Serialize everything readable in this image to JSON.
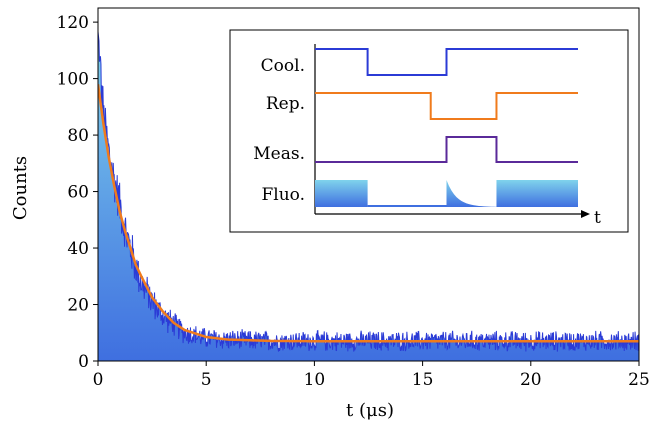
{
  "chart_data": {
    "type": "line",
    "xlabel": "t (μs)",
    "ylabel": "Counts",
    "xlim": [
      0,
      25
    ],
    "ylim": [
      0,
      125
    ],
    "xticks": [
      0,
      5,
      10,
      15,
      20,
      25
    ],
    "yticks": [
      0,
      20,
      40,
      60,
      80,
      100,
      120
    ],
    "grid": false,
    "series": [
      {
        "kind": "histogram",
        "color": "#2b3bd6",
        "fill_gradient": [
          "#7fd3ec",
          "#3f6fe0"
        ],
        "x": [
          0.0,
          0.25,
          0.5,
          0.75,
          1.0,
          1.25,
          1.5,
          1.75,
          2.0,
          2.5,
          3.0,
          3.5,
          4.0,
          5.0,
          6.0,
          8.0,
          10.0,
          15.0,
          20.0,
          25.0
        ],
        "values": [
          112,
          88,
          74,
          64,
          56,
          46,
          40,
          33,
          28,
          21,
          16,
          13,
          10,
          8,
          7.5,
          7,
          7,
          7,
          7,
          7
        ],
        "noise_amplitude": 6
      },
      {
        "kind": "fit",
        "color": "#f07b1c",
        "x": [
          0.0,
          0.25,
          0.5,
          0.75,
          1.0,
          1.25,
          1.5,
          1.75,
          2.0,
          2.5,
          3.0,
          3.5,
          4.0,
          5.0,
          6.0,
          8.0,
          10.0,
          15.0,
          20.0,
          25.0
        ],
        "values": [
          98,
          84,
          72,
          62,
          53,
          46,
          40,
          34,
          30,
          22.5,
          17.5,
          13.5,
          11,
          8.5,
          7.6,
          7.1,
          7,
          7,
          7,
          7
        ]
      }
    ],
    "inset": {
      "type": "timing",
      "axis_label": "t",
      "rows": [
        {
          "label": "Cool.",
          "color": "#2b3bd6",
          "levels": [
            [
              0,
              1
            ],
            [
              0.2,
              0
            ],
            [
              0.5,
              1
            ],
            [
              1.0,
              1
            ]
          ]
        },
        {
          "label": "Rep.",
          "color": "#f07b1c",
          "levels": [
            [
              0,
              1
            ],
            [
              0.44,
              0
            ],
            [
              0.69,
              1
            ],
            [
              1.0,
              1
            ]
          ]
        },
        {
          "label": "Meas.",
          "color": "#5a2a99",
          "levels": [
            [
              0,
              0
            ],
            [
              0.5,
              1
            ],
            [
              0.69,
              0
            ],
            [
              1.0,
              0
            ]
          ]
        },
        {
          "label": "Fluo.",
          "color": "#4a9fe0",
          "kind": "fluorescence"
        }
      ]
    }
  }
}
